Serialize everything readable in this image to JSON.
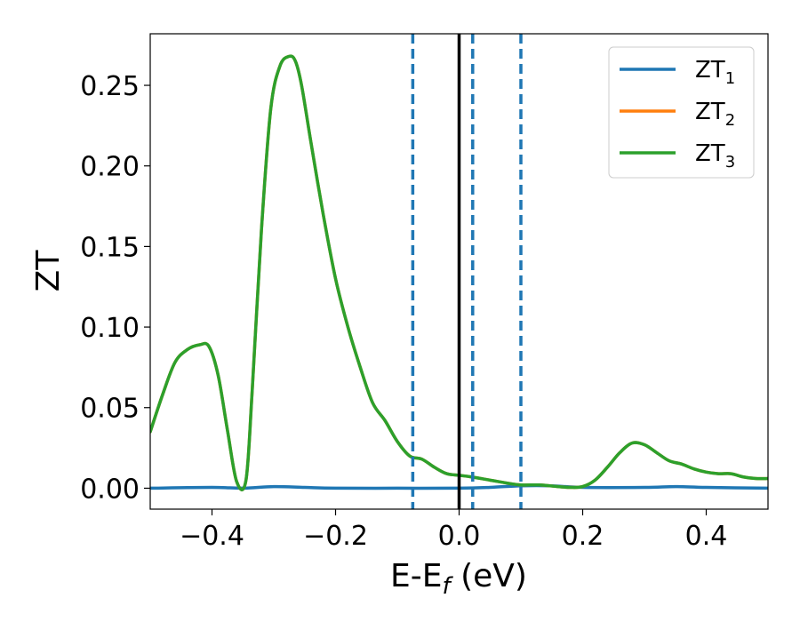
{
  "chart_data": {
    "type": "line",
    "xlabel": "E-E",
    "xlabel_sub": "f",
    "xlabel_unit": " (eV)",
    "ylabel": "ZT",
    "xlim": [
      -0.5,
      0.5
    ],
    "ylim": [
      -0.013,
      0.282
    ],
    "x_ticks": [
      -0.4,
      -0.2,
      0.0,
      0.2,
      0.4
    ],
    "x_tick_labels": [
      "−0.4",
      "−0.2",
      "0.0",
      "0.2",
      "0.4"
    ],
    "y_ticks": [
      0.0,
      0.05,
      0.1,
      0.15,
      0.2,
      0.25
    ],
    "y_tick_labels": [
      "0.00",
      "0.05",
      "0.10",
      "0.15",
      "0.20",
      "0.25"
    ],
    "grid": false,
    "legend_position": "top-right",
    "series": [
      {
        "name": "ZT",
        "name_sub": "1",
        "color": "#1f77b4",
        "x": [
          -0.5,
          -0.4,
          -0.35,
          -0.3,
          -0.25,
          -0.2,
          -0.1,
          0.0,
          0.05,
          0.1,
          0.15,
          0.2,
          0.3,
          0.35,
          0.4,
          0.5
        ],
        "y": [
          0.0,
          0.0005,
          0.0,
          0.001,
          0.0005,
          0.0,
          0.0,
          0.0,
          0.0005,
          0.0015,
          0.0015,
          0.0005,
          0.0005,
          0.001,
          0.0005,
          0.0
        ]
      },
      {
        "name": "ZT",
        "name_sub": "2",
        "color": "#ff7f0e",
        "x": [
          -0.5,
          -0.48,
          -0.46,
          -0.44,
          -0.42,
          -0.405,
          -0.39,
          -0.375,
          -0.36,
          -0.345,
          -0.335,
          -0.32,
          -0.305,
          -0.29,
          -0.275,
          -0.265,
          -0.255,
          -0.24,
          -0.22,
          -0.2,
          -0.18,
          -0.16,
          -0.14,
          -0.12,
          -0.1,
          -0.08,
          -0.06,
          -0.04,
          -0.02,
          0.0,
          0.02,
          0.05,
          0.08,
          0.1,
          0.13,
          0.16,
          0.18,
          0.2,
          0.22,
          0.24,
          0.26,
          0.28,
          0.3,
          0.32,
          0.34,
          0.36,
          0.38,
          0.4,
          0.42,
          0.44,
          0.46,
          0.48,
          0.5
        ],
        "y": [
          0.035,
          0.058,
          0.078,
          0.086,
          0.089,
          0.088,
          0.07,
          0.036,
          0.004,
          0.005,
          0.06,
          0.16,
          0.235,
          0.262,
          0.268,
          0.265,
          0.25,
          0.215,
          0.17,
          0.13,
          0.1,
          0.075,
          0.053,
          0.042,
          0.029,
          0.02,
          0.018,
          0.013,
          0.009,
          0.008,
          0.007,
          0.005,
          0.003,
          0.002,
          0.002,
          0.001,
          0.0005,
          0.001,
          0.005,
          0.013,
          0.022,
          0.028,
          0.027,
          0.022,
          0.017,
          0.015,
          0.012,
          0.01,
          0.009,
          0.009,
          0.007,
          0.006,
          0.006
        ]
      },
      {
        "name": "ZT",
        "name_sub": "3",
        "color": "#2ca02c",
        "x": [
          -0.5,
          -0.48,
          -0.46,
          -0.44,
          -0.42,
          -0.405,
          -0.39,
          -0.375,
          -0.36,
          -0.345,
          -0.335,
          -0.32,
          -0.305,
          -0.29,
          -0.275,
          -0.265,
          -0.255,
          -0.24,
          -0.22,
          -0.2,
          -0.18,
          -0.16,
          -0.14,
          -0.12,
          -0.1,
          -0.08,
          -0.06,
          -0.04,
          -0.02,
          0.0,
          0.02,
          0.05,
          0.08,
          0.1,
          0.13,
          0.16,
          0.18,
          0.2,
          0.22,
          0.24,
          0.26,
          0.28,
          0.3,
          0.32,
          0.34,
          0.36,
          0.38,
          0.4,
          0.42,
          0.44,
          0.46,
          0.48,
          0.5
        ],
        "y": [
          0.035,
          0.058,
          0.078,
          0.086,
          0.089,
          0.088,
          0.07,
          0.036,
          0.004,
          0.005,
          0.06,
          0.16,
          0.235,
          0.262,
          0.268,
          0.265,
          0.25,
          0.215,
          0.17,
          0.13,
          0.1,
          0.075,
          0.053,
          0.042,
          0.029,
          0.02,
          0.018,
          0.013,
          0.009,
          0.008,
          0.007,
          0.005,
          0.003,
          0.002,
          0.002,
          0.001,
          0.0005,
          0.001,
          0.005,
          0.013,
          0.022,
          0.028,
          0.027,
          0.022,
          0.017,
          0.015,
          0.012,
          0.01,
          0.009,
          0.009,
          0.007,
          0.006,
          0.006
        ]
      }
    ],
    "vlines": [
      {
        "x": -0.075,
        "style": "dashed",
        "color": "#1f77b4"
      },
      {
        "x": 0.0,
        "style": "solid",
        "color": "#000000"
      },
      {
        "x": 0.022,
        "style": "dashed",
        "color": "#1f77b4"
      },
      {
        "x": 0.1,
        "style": "dashed",
        "color": "#1f77b4"
      }
    ]
  }
}
